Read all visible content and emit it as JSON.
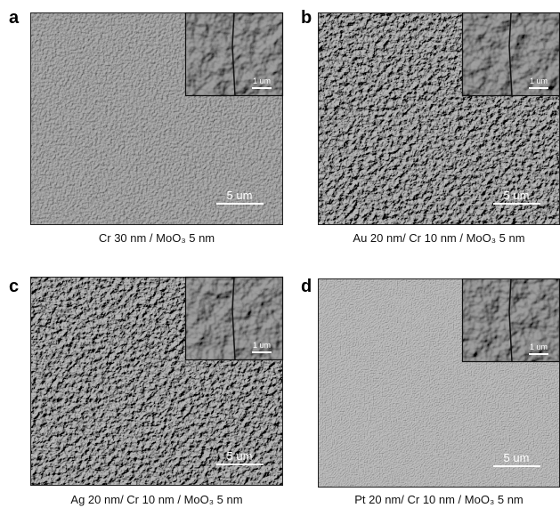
{
  "panels": [
    {
      "letter": "a",
      "caption": "Cr 30 nm / MoO₃ 5 nm",
      "scale_main": "5 um",
      "scale_inset": "1 um"
    },
    {
      "letter": "b",
      "caption": "Au 20 nm/ Cr 10 nm / MoO₃ 5 nm",
      "scale_main": "5 um",
      "scale_inset": "1 um"
    },
    {
      "letter": "c",
      "caption": "Ag 20 nm/ Cr 10 nm / MoO₃ 5 nm",
      "scale_main": "5 um",
      "scale_inset": "1 um"
    },
    {
      "letter": "d",
      "caption": "Pt 20 nm/ Cr 10 nm / MoO₃ 5 nm",
      "scale_main": "5 um",
      "scale_inset": "1 um"
    }
  ]
}
